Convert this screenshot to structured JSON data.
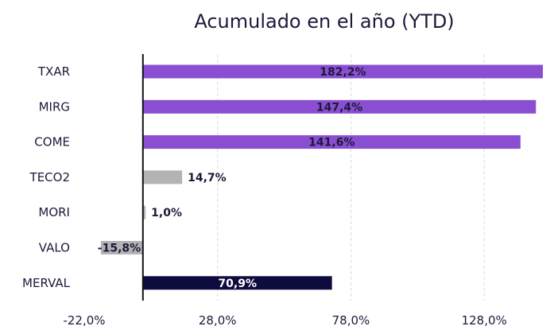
{
  "chart_data": {
    "type": "bar",
    "orientation": "horizontal",
    "title": "Acumulado en el año (YTD)",
    "categories": [
      "TXAR",
      "MIRG",
      "COME",
      "TECO2",
      "MORI",
      "VALO",
      "MERVAL"
    ],
    "values": [
      182.2,
      147.4,
      141.6,
      14.7,
      1.0,
      -15.8,
      70.9
    ],
    "data_labels": [
      "182,2%",
      "147,4%",
      "141,6%",
      "14,7%",
      "1,0%",
      "-15,8%",
      "70,9%"
    ],
    "bar_colors": [
      "#8a4fd1",
      "#8a4fd1",
      "#8a4fd1",
      "#b3b3b3",
      "#b3b3b3",
      "#b3b3b3",
      "#0e0b3d"
    ],
    "xlim": [
      -22,
      150
    ],
    "xticks": [
      -22,
      28,
      78,
      128
    ],
    "xtick_labels": [
      "-22,0%",
      "28,0%",
      "78,0%",
      "128,0%"
    ],
    "grid": "vertical dashed",
    "legend": "none"
  }
}
